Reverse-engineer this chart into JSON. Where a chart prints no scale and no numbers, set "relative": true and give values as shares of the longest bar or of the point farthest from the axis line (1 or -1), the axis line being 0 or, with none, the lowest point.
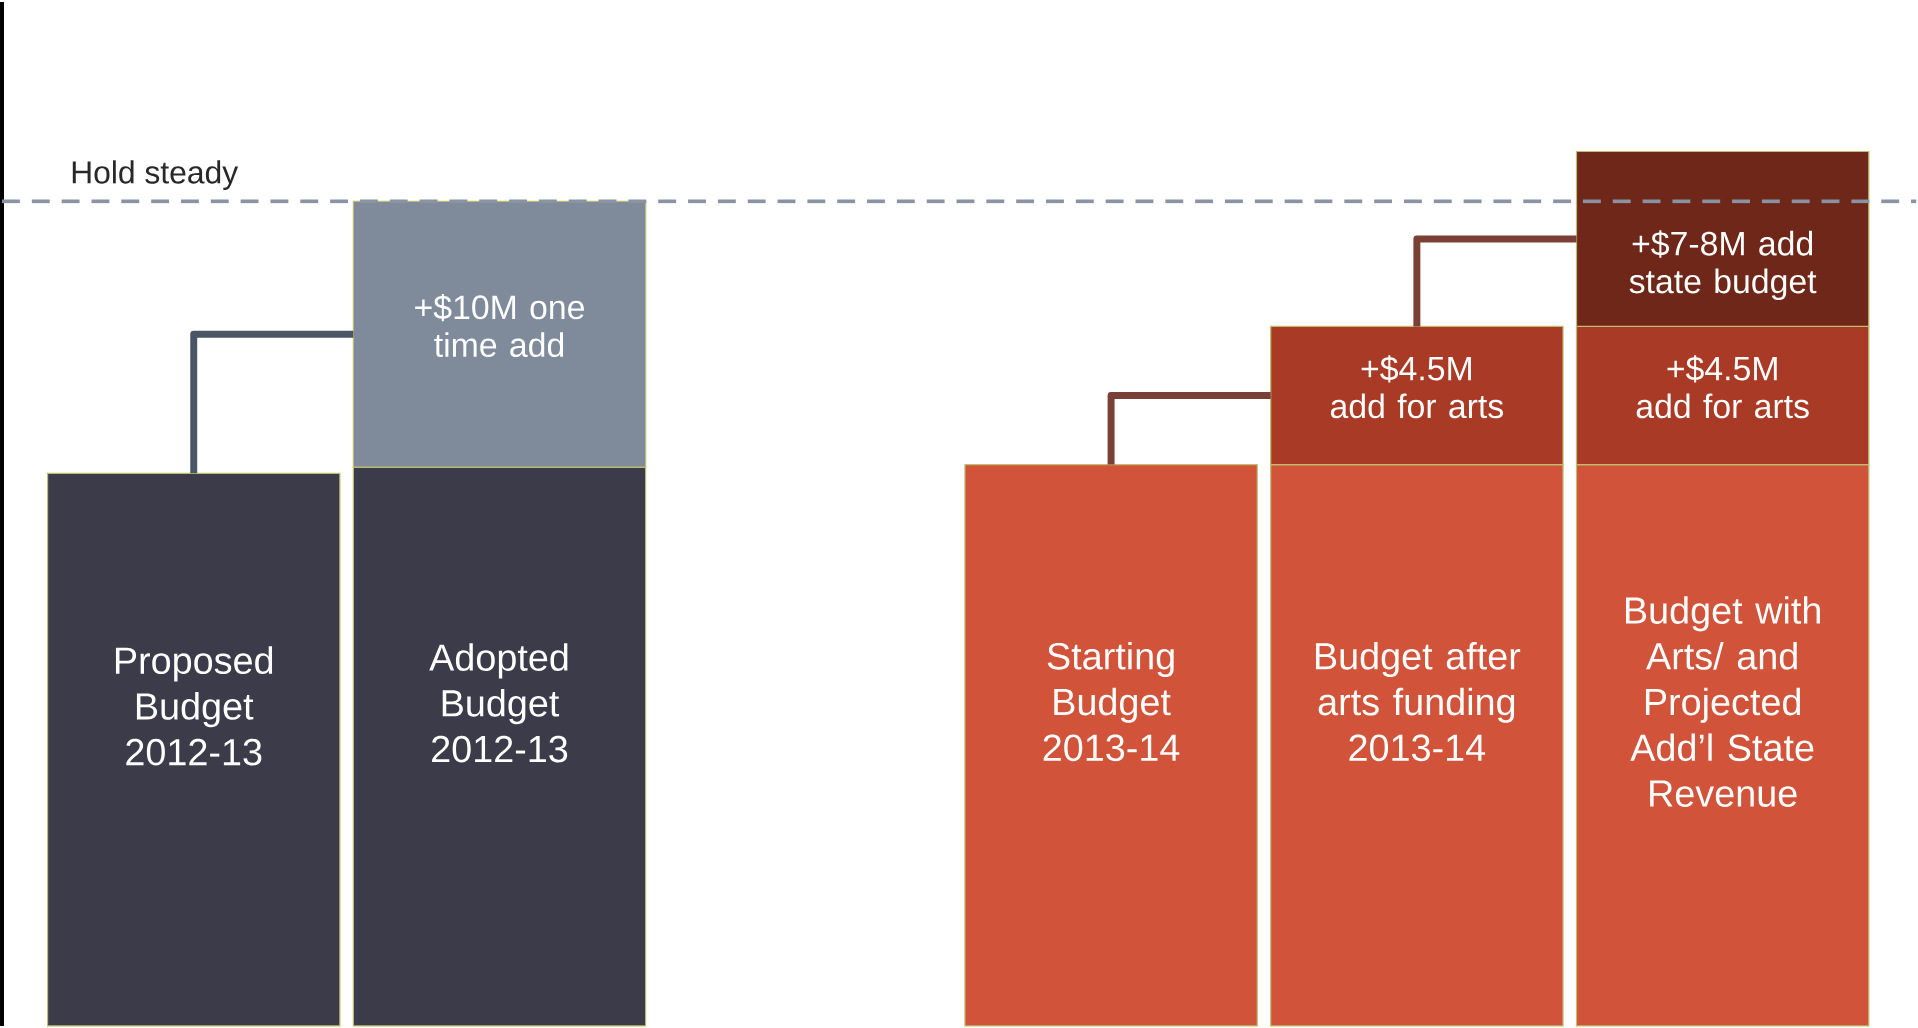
{
  "chart_data": {
    "type": "bar",
    "stacked": true,
    "relative": true,
    "categories": [
      "Proposed Budget 2012-13",
      "Adopted Budget 2012-13",
      null,
      "Starting Budget 2013-14",
      "Budget after arts funding 2013-14",
      "Budget with Arts/ and Projected Add’l State Revenue"
    ],
    "series": [
      {
        "colors": [
          "#3c3b4a",
          "#3c3b4a",
          "#3c3b4a",
          "#d0533a",
          "#d0533a",
          "#d0533a"
        ],
        "values": [
          0.632,
          0.639,
          null,
          0.642,
          0.642,
          0.642
        ]
      },
      {
        "colors": [
          "#7f8b9b",
          "#7f8b9b",
          "#7f8b9b",
          "#a93a26",
          "#a93a26",
          "#a93a26"
        ],
        "values": [
          null,
          0.304,
          null,
          null,
          0.158,
          0.158
        ]
      },
      {
        "colors": [
          "#6e2718",
          "#6e2718",
          "#6e2718",
          "#6e2718",
          "#6e2718",
          "#6e2718"
        ],
        "values": [
          null,
          null,
          null,
          null,
          null,
          0.2
        ]
      }
    ],
    "annotations": [
      "+$10M one time add",
      "+$4.5M add for arts",
      "+$4.5M add for arts",
      "+$7-8M add state budget"
    ],
    "ref_lines": [
      {
        "axis": "y",
        "value": 0.943,
        "label": "Hold steady",
        "color": "#8a93a3",
        "line_style": "dashed"
      }
    ]
  }
}
